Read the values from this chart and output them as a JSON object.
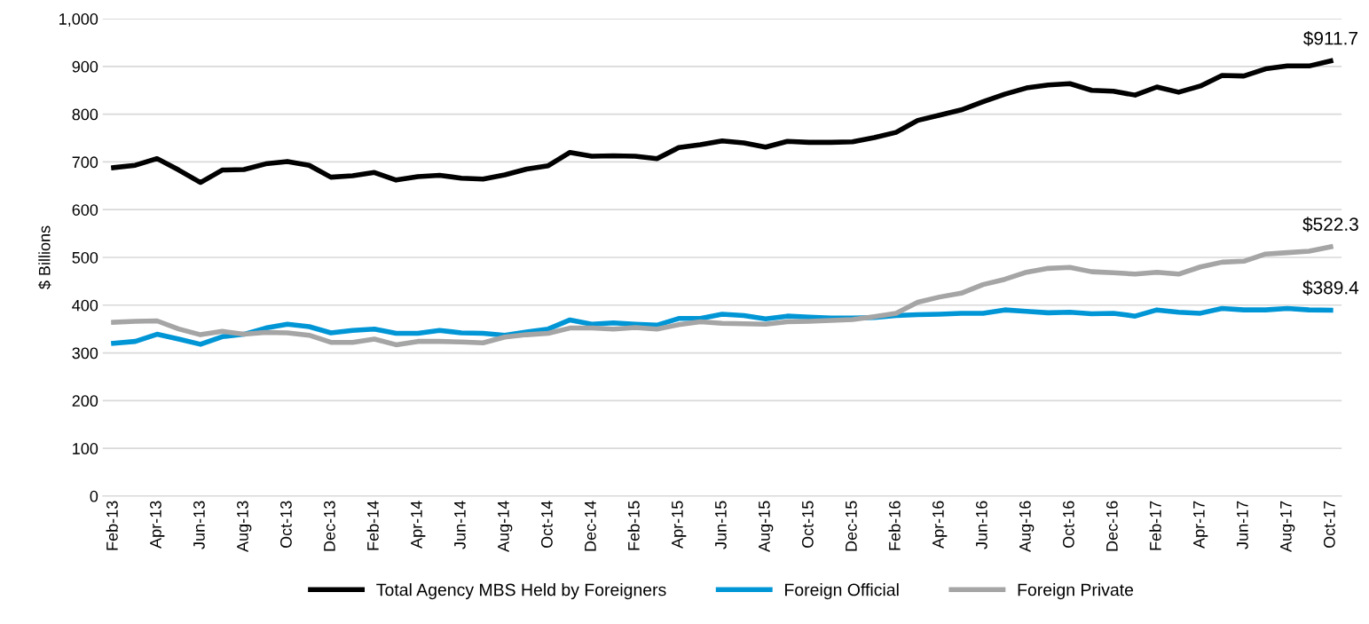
{
  "chart_data": {
    "type": "line",
    "ylabel": "$ Billions",
    "categories": [
      "Feb-13",
      null,
      "Apr-13",
      null,
      "Jun-13",
      null,
      "Aug-13",
      null,
      "Oct-13",
      null,
      "Dec-13",
      null,
      "Feb-14",
      null,
      "Apr-14",
      null,
      "Jun-14",
      null,
      "Aug-14",
      null,
      "Oct-14",
      null,
      "Dec-14",
      null,
      "Feb-15",
      null,
      "Apr-15",
      null,
      "Jun-15",
      null,
      "Aug-15",
      null,
      "Oct-15",
      null,
      "Dec-15",
      null,
      "Feb-16",
      null,
      "Apr-16",
      null,
      "Jun-16",
      null,
      "Aug-16",
      null,
      "Oct-16",
      null,
      "Dec-16",
      null,
      "Feb-17",
      null,
      "Apr-17",
      null,
      "Jun-17",
      null,
      "Aug-17",
      null,
      "Oct-17"
    ],
    "series": [
      {
        "name": "Total Agency MBS Held by Foreigners",
        "color": "#000000",
        "values": [
          688,
          693,
          707,
          683,
          657,
          683,
          684,
          696,
          701,
          693,
          668,
          671,
          678,
          662,
          669,
          672,
          666,
          664,
          673,
          685,
          692,
          720,
          712,
          713,
          712,
          707,
          730,
          736,
          744,
          740,
          731,
          743,
          741,
          741,
          742,
          751,
          762,
          787,
          798,
          809,
          826,
          842,
          855,
          861,
          864,
          850,
          848,
          840,
          857,
          846,
          859,
          881,
          880,
          895,
          901,
          901,
          911.7
        ]
      },
      {
        "name": "Foreign Official",
        "color": "#0096d6",
        "values": [
          320,
          324,
          339,
          329,
          318,
          334,
          339,
          352,
          360,
          355,
          342,
          347,
          350,
          341,
          341,
          347,
          342,
          341,
          337,
          344,
          350,
          369,
          360,
          363,
          360,
          358,
          372,
          372,
          381,
          378,
          371,
          377,
          375,
          373,
          373,
          374,
          378,
          380,
          381,
          383,
          383,
          390,
          387,
          384,
          385,
          382,
          383,
          377,
          390,
          385,
          383,
          393,
          390,
          390,
          393,
          390,
          389.4
        ]
      },
      {
        "name": "Foreign Private",
        "color": "#a5a5a5",
        "values": [
          364,
          366,
          367,
          350,
          338,
          345,
          339,
          343,
          342,
          337,
          322,
          322,
          329,
          317,
          324,
          324,
          323,
          321,
          333,
          338,
          341,
          352,
          352,
          350,
          353,
          350,
          359,
          365,
          362,
          361,
          360,
          365,
          366,
          368,
          370,
          376,
          383,
          406,
          417,
          425,
          443,
          454,
          469,
          477,
          479,
          470,
          468,
          465,
          469,
          465,
          480,
          490,
          492,
          507,
          510,
          513,
          522.3
        ]
      }
    ],
    "ylim": [
      0,
      1000
    ],
    "yticks": [
      0,
      100,
      200,
      300,
      400,
      500,
      600,
      700,
      800,
      900,
      {
        "value": 1000,
        "label": "1,000"
      }
    ],
    "grid": "y",
    "legend": "bottom",
    "marker": "none",
    "line_style": "solid",
    "annotations": [
      {
        "text": "$911.7",
        "x": "Oct-17",
        "y": 911.7
      },
      {
        "text": "$522.3",
        "x": "Oct-17",
        "y": 522.3
      },
      {
        "text": "$389.4",
        "x": "Oct-17",
        "y": 389.4
      }
    ]
  }
}
